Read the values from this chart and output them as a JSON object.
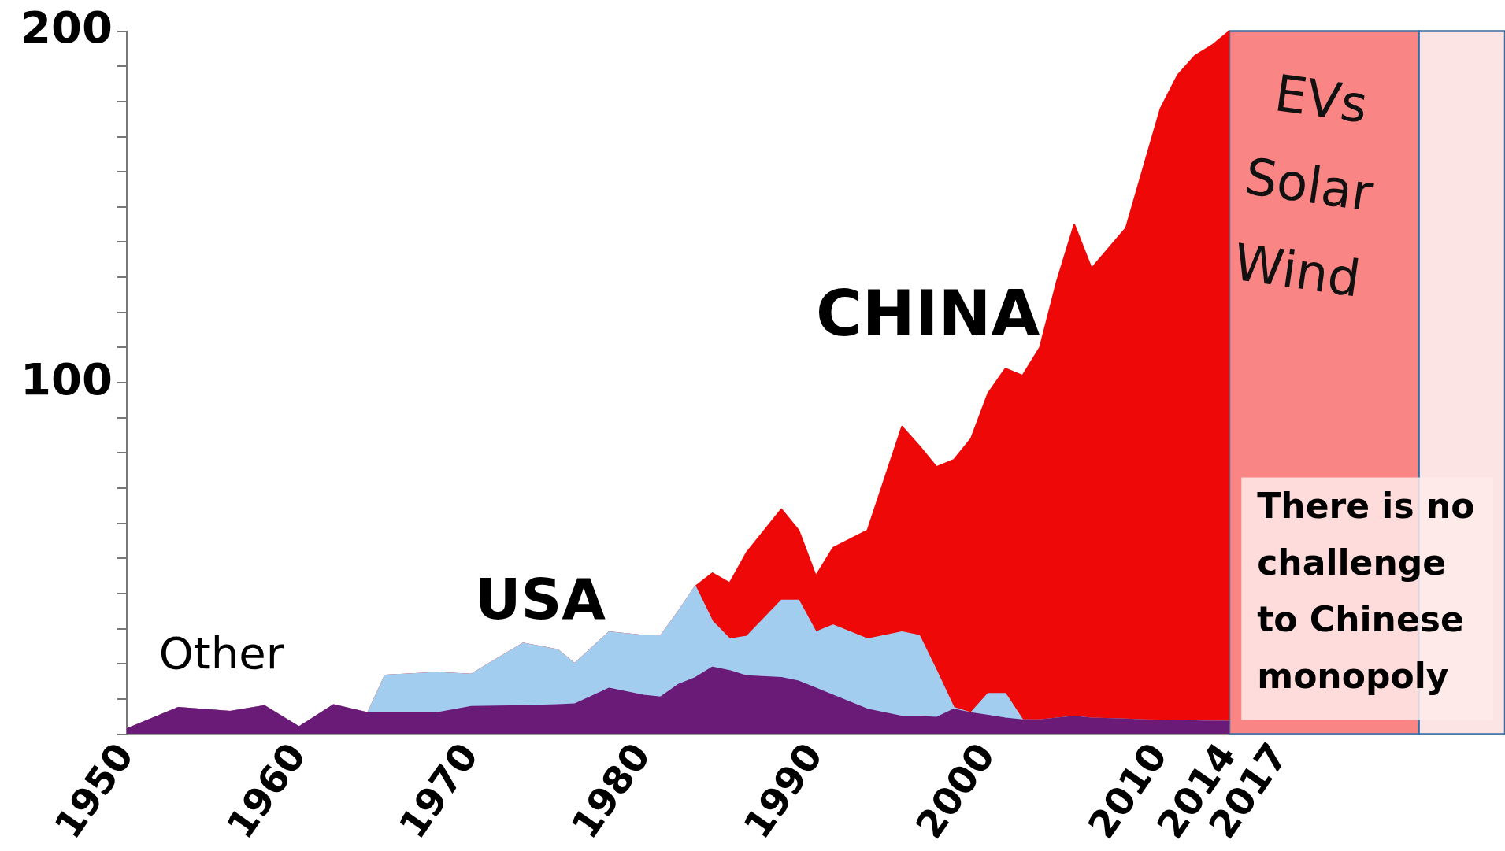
{
  "chart_data": {
    "type": "area",
    "stacked": true,
    "x": [
      1950,
      1953,
      1956,
      1958,
      1960,
      1962,
      1964,
      1965,
      1968,
      1970,
      1973,
      1975,
      1976,
      1978,
      1980,
      1981,
      1982,
      1983,
      1984,
      1985,
      1986,
      1988,
      1989,
      1990,
      1991,
      1993,
      1995,
      1996,
      1997,
      1998,
      1999,
      2000,
      2001,
      2002,
      2003,
      2004,
      2005,
      2006,
      2008,
      2009,
      2010,
      2011,
      2012,
      2013,
      2014
    ],
    "series": [
      {
        "name": "Other",
        "color": "#6a1b78",
        "values": [
          1.4,
          7.5,
          6.4,
          8,
          2,
          8.3,
          6,
          6,
          6,
          7.8,
          8,
          8.3,
          8.5,
          13,
          11,
          10.5,
          14,
          16,
          19,
          18,
          16.5,
          16,
          15,
          13,
          11,
          7,
          5,
          5,
          4.7,
          7,
          6,
          5.3,
          4.5,
          4,
          4,
          4.5,
          5,
          4.5,
          4.2,
          4,
          3.9,
          3.8,
          3.7,
          3.6,
          3.6
        ]
      },
      {
        "name": "USA",
        "color": "#a3cdee",
        "values": [
          0,
          0,
          0,
          0,
          0,
          0,
          0,
          10.7,
          11.5,
          9.2,
          17.8,
          15.7,
          11.5,
          16,
          17,
          17.5,
          20.7,
          26,
          13,
          9,
          11.3,
          22,
          23,
          16,
          20,
          20,
          24,
          23,
          13.3,
          0.5,
          0,
          6.2,
          7,
          0,
          0,
          0,
          0,
          0,
          0,
          0,
          0,
          0,
          0,
          0,
          0
        ]
      },
      {
        "name": "CHINA",
        "color": "#ee0808",
        "values": [
          0,
          0,
          0,
          0,
          0,
          0,
          0,
          0,
          0,
          0,
          0,
          0,
          0,
          0,
          0,
          0,
          0,
          0,
          13.8,
          16,
          24,
          26,
          20,
          16,
          22,
          31,
          58.5,
          54,
          58,
          70.5,
          78,
          85.5,
          92.5,
          98,
          106,
          124.5,
          140,
          128,
          139.8,
          157,
          174,
          183.7,
          189.3,
          192.4,
          196.4
        ]
      }
    ],
    "xlim": [
      1950,
      2030
    ],
    "xticks": [
      1950,
      1960,
      1970,
      1980,
      1990,
      2000,
      2010,
      2014,
      2017
    ],
    "ylim": [
      0,
      200
    ],
    "yticks": [
      {
        "value": 0,
        "label": null
      },
      {
        "value": 10,
        "label": null
      },
      {
        "value": 20,
        "label": null
      },
      {
        "value": 30,
        "label": null
      },
      {
        "value": 40,
        "label": null
      },
      {
        "value": 50,
        "label": null
      },
      {
        "value": 60,
        "label": null
      },
      {
        "value": 70,
        "label": null
      },
      {
        "value": 80,
        "label": null
      },
      {
        "value": 90,
        "label": null
      },
      100,
      {
        "value": 110,
        "label": null
      },
      {
        "value": 120,
        "label": null
      },
      {
        "value": 130,
        "label": null
      },
      {
        "value": 140,
        "label": null
      },
      {
        "value": 150,
        "label": null
      },
      {
        "value": 160,
        "label": null
      },
      {
        "value": 170,
        "label": null
      },
      {
        "value": 180,
        "label": null
      },
      {
        "value": 190,
        "label": null
      },
      200
    ],
    "bands": [
      {
        "axis": "x",
        "from": 2014,
        "to": 2025,
        "label": "EVs\nSolar\nWind",
        "color": "#f98585"
      },
      {
        "axis": "x",
        "from": 2025,
        "to": 2030,
        "color": "#fde4e4"
      }
    ],
    "annotations": [
      "There is no\nchallenge\nto Chinese\nmonopoly"
    ],
    "grid": false,
    "legend": false
  }
}
